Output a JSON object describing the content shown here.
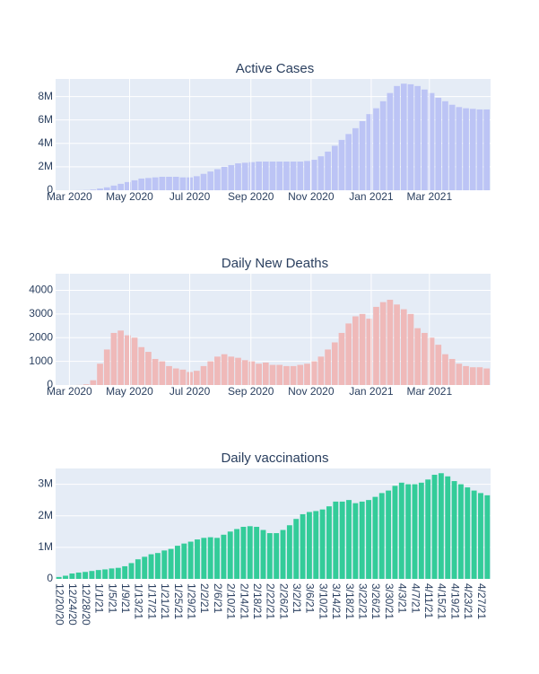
{
  "chart_data": [
    {
      "type": "bar",
      "title": "Active Cases",
      "color": "#bcc4f5",
      "grid": true,
      "x": [
        "2020-03-01",
        "2020-03-08",
        "2020-03-15",
        "2020-03-22",
        "2020-03-29",
        "2020-04-05",
        "2020-04-12",
        "2020-04-19",
        "2020-04-26",
        "2020-05-03",
        "2020-05-10",
        "2020-05-17",
        "2020-05-24",
        "2020-05-31",
        "2020-06-07",
        "2020-06-14",
        "2020-06-21",
        "2020-06-28",
        "2020-07-05",
        "2020-07-12",
        "2020-07-19",
        "2020-07-26",
        "2020-08-02",
        "2020-08-09",
        "2020-08-16",
        "2020-08-23",
        "2020-08-30",
        "2020-09-06",
        "2020-09-13",
        "2020-09-20",
        "2020-09-27",
        "2020-10-04",
        "2020-10-11",
        "2020-10-18",
        "2020-10-25",
        "2020-11-01",
        "2020-11-08",
        "2020-11-15",
        "2020-11-22",
        "2020-11-29",
        "2020-12-06",
        "2020-12-13",
        "2020-12-20",
        "2020-12-27",
        "2021-01-03",
        "2021-01-10",
        "2021-01-17",
        "2021-01-24",
        "2021-01-31",
        "2021-02-07",
        "2021-02-14",
        "2021-02-21",
        "2021-02-28",
        "2021-03-07",
        "2021-03-14",
        "2021-03-21",
        "2021-03-28",
        "2021-04-04",
        "2021-04-11",
        "2021-04-18",
        "2021-04-25"
      ],
      "values": [
        0,
        5000,
        20000,
        60000,
        150000,
        250000,
        400000,
        550000,
        700000,
        850000,
        1000000,
        1050000,
        1100000,
        1150000,
        1150000,
        1150000,
        1100000,
        1100000,
        1200000,
        1400000,
        1600000,
        1800000,
        2000000,
        2150000,
        2300000,
        2350000,
        2400000,
        2450000,
        2450000,
        2450000,
        2450000,
        2450000,
        2450000,
        2450000,
        2500000,
        2600000,
        2900000,
        3300000,
        3800000,
        4300000,
        4800000,
        5300000,
        5900000,
        6500000,
        7000000,
        7600000,
        8300000,
        8900000,
        9100000,
        9050000,
        8900000,
        8600000,
        8300000,
        7900000,
        7600000,
        7300000,
        7100000,
        7000000,
        6950000,
        6900000,
        6900000
      ],
      "xlim": [
        "2020-02-16",
        "2021-05-02"
      ],
      "xticks": [
        {
          "value": "2020-03-01",
          "label": "Mar 2020"
        },
        {
          "value": "2020-05-01",
          "label": "May 2020"
        },
        {
          "value": "2020-07-01",
          "label": "Jul 2020"
        },
        {
          "value": "2020-09-01",
          "label": "Sep 2020"
        },
        {
          "value": "2020-11-01",
          "label": "Nov 2020"
        },
        {
          "value": "2021-01-01",
          "label": "Jan 2021"
        },
        {
          "value": "2021-03-01",
          "label": "Mar 2021"
        }
      ],
      "ylim": [
        0,
        9500000
      ],
      "yticks": [
        0,
        {
          "value": 2000000,
          "label": "2M"
        },
        {
          "value": 4000000,
          "label": "4M"
        },
        {
          "value": 6000000,
          "label": "6M"
        },
        {
          "value": 8000000,
          "label": "8M"
        }
      ]
    },
    {
      "type": "bar",
      "title": "Daily New Deaths",
      "color": "#efb9b9",
      "grid": true,
      "x": [
        "2020-03-01",
        "2020-03-08",
        "2020-03-15",
        "2020-03-22",
        "2020-03-29",
        "2020-04-05",
        "2020-04-12",
        "2020-04-19",
        "2020-04-26",
        "2020-05-03",
        "2020-05-10",
        "2020-05-17",
        "2020-05-24",
        "2020-05-31",
        "2020-06-07",
        "2020-06-14",
        "2020-06-21",
        "2020-06-28",
        "2020-07-05",
        "2020-07-12",
        "2020-07-19",
        "2020-07-26",
        "2020-08-02",
        "2020-08-09",
        "2020-08-16",
        "2020-08-23",
        "2020-08-30",
        "2020-09-06",
        "2020-09-13",
        "2020-09-20",
        "2020-09-27",
        "2020-10-04",
        "2020-10-11",
        "2020-10-18",
        "2020-10-25",
        "2020-11-01",
        "2020-11-08",
        "2020-11-15",
        "2020-11-22",
        "2020-11-29",
        "2020-12-06",
        "2020-12-13",
        "2020-12-20",
        "2020-12-27",
        "2021-01-03",
        "2021-01-10",
        "2021-01-17",
        "2021-01-24",
        "2021-01-31",
        "2021-02-07",
        "2021-02-14",
        "2021-02-21",
        "2021-02-28",
        "2021-03-07",
        "2021-03-14",
        "2021-03-21",
        "2021-03-28",
        "2021-04-04",
        "2021-04-11",
        "2021-04-18",
        "2021-04-25"
      ],
      "values": [
        0,
        5,
        30,
        200,
        900,
        1500,
        2200,
        2300,
        2100,
        2000,
        1600,
        1400,
        1100,
        1000,
        800,
        700,
        650,
        550,
        600,
        800,
        1000,
        1200,
        1300,
        1200,
        1150,
        1050,
        1000,
        900,
        950,
        850,
        850,
        800,
        800,
        850,
        900,
        1000,
        1200,
        1500,
        1800,
        2200,
        2600,
        2900,
        3000,
        2800,
        3300,
        3500,
        3600,
        3400,
        3200,
        3000,
        2400,
        2200,
        2000,
        1700,
        1300,
        1100,
        900,
        800,
        750,
        750,
        700
      ],
      "xlim": [
        "2020-02-16",
        "2021-05-02"
      ],
      "xticks": [
        {
          "value": "2020-03-01",
          "label": "Mar 2020"
        },
        {
          "value": "2020-05-01",
          "label": "May 2020"
        },
        {
          "value": "2020-07-01",
          "label": "Jul 2020"
        },
        {
          "value": "2020-09-01",
          "label": "Sep 2020"
        },
        {
          "value": "2020-11-01",
          "label": "Nov 2020"
        },
        {
          "value": "2021-01-01",
          "label": "Jan 2021"
        },
        {
          "value": "2021-03-01",
          "label": "Mar 2021"
        }
      ],
      "ylim": [
        0,
        4700
      ],
      "yticks": [
        0,
        1000,
        2000,
        3000,
        4000
      ]
    },
    {
      "type": "bar",
      "title": "Daily vaccinations",
      "color": "#33cc99",
      "grid": true,
      "categories": [
        "12/20/20",
        null,
        "12/24/20",
        null,
        "12/28/20",
        null,
        "1/1/21",
        null,
        "1/5/21",
        null,
        "1/9/21",
        null,
        "1/13/21",
        null,
        "1/17/21",
        null,
        "1/21/21",
        null,
        "1/25/21",
        null,
        "1/29/21",
        null,
        "2/2/21",
        null,
        "2/6/21",
        null,
        "2/10/21",
        null,
        "2/14/21",
        null,
        "2/18/21",
        null,
        "2/22/21",
        null,
        "2/26/21",
        null,
        "3/2/21",
        null,
        "3/6/21",
        null,
        "3/10/21",
        null,
        "3/14/21",
        null,
        "3/18/21",
        null,
        "3/22/21",
        null,
        "3/26/21",
        null,
        "3/30/21",
        null,
        "4/3/21",
        null,
        "4/7/21",
        null,
        "4/11/21",
        null,
        "4/15/21",
        null,
        "4/19/21",
        null,
        "4/23/21",
        null,
        "4/27/21",
        null
      ],
      "values": [
        60000,
        100000,
        170000,
        200000,
        220000,
        250000,
        280000,
        300000,
        330000,
        350000,
        400000,
        500000,
        620000,
        700000,
        780000,
        820000,
        900000,
        950000,
        1050000,
        1120000,
        1180000,
        1250000,
        1300000,
        1320000,
        1300000,
        1400000,
        1500000,
        1580000,
        1650000,
        1670000,
        1650000,
        1550000,
        1450000,
        1450000,
        1550000,
        1700000,
        1900000,
        2050000,
        2120000,
        2150000,
        2200000,
        2300000,
        2450000,
        2450000,
        2500000,
        2400000,
        2450000,
        2500000,
        2600000,
        2720000,
        2800000,
        2950000,
        3050000,
        3000000,
        3000000,
        3050000,
        3150000,
        3300000,
        3350000,
        3250000,
        3100000,
        3000000,
        2900000,
        2800000,
        2720000,
        2650000
      ],
      "ylim": [
        0,
        3500000
      ],
      "yticks": [
        0,
        {
          "value": 1000000,
          "label": "1M"
        },
        {
          "value": 2000000,
          "label": "2M"
        },
        {
          "value": 3000000,
          "label": "3M"
        }
      ]
    }
  ]
}
